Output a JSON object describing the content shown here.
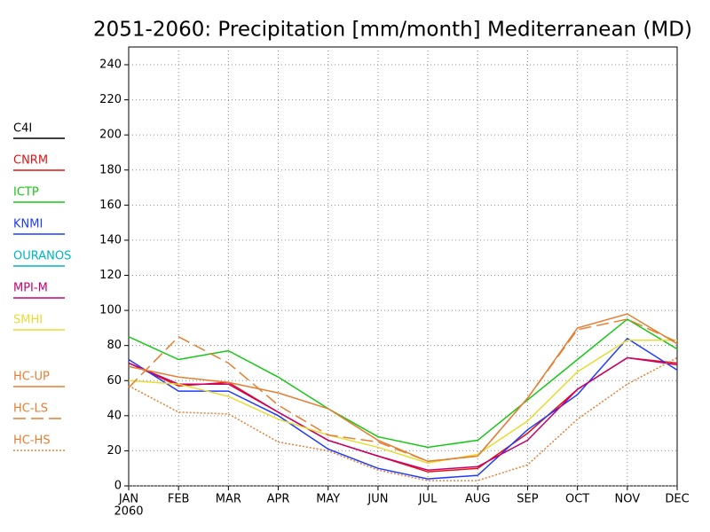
{
  "chart_data": {
    "type": "line",
    "title": "2051-2060: Precipitation [mm/month] Mediterranean (MD)",
    "categories": [
      "JAN",
      "FEB",
      "MAR",
      "APR",
      "MAY",
      "JUN",
      "JUL",
      "AUG",
      "SEP",
      "OCT",
      "NOV",
      "DEC"
    ],
    "year_label": "2060",
    "ylim": [
      0,
      240
    ],
    "yticks": [
      0,
      20,
      40,
      60,
      80,
      100,
      120,
      140,
      160,
      180,
      200,
      220,
      240
    ],
    "grid": true,
    "series": [
      {
        "name": "C4I",
        "color": "#000000",
        "dash": "solid",
        "values": [
          null,
          null,
          null,
          null,
          null,
          null,
          null,
          null,
          null,
          null,
          null,
          null
        ]
      },
      {
        "name": "CNRM",
        "color": "#e01414",
        "dash": "solid",
        "values": [
          70,
          57,
          59,
          42,
          26,
          17,
          8,
          10,
          30,
          55,
          73,
          70
        ]
      },
      {
        "name": "ICTP",
        "color": "#14c814",
        "dash": "solid",
        "values": [
          85,
          72,
          77,
          62,
          44,
          28,
          22,
          26,
          49,
          72,
          95,
          78
        ]
      },
      {
        "name": "KNMI",
        "color": "#1e3cff",
        "dash": "solid",
        "values": [
          72,
          54,
          54,
          40,
          21,
          10,
          4,
          6,
          32,
          52,
          84,
          66
        ]
      },
      {
        "name": "OURANOS",
        "color": "#00b4c8",
        "dash": "solid",
        "values": [
          null,
          null,
          null,
          null,
          null,
          null,
          null,
          null,
          null,
          null,
          null,
          null
        ]
      },
      {
        "name": "MPI-M",
        "color": "#c8006e",
        "dash": "solid",
        "values": [
          70,
          58,
          58,
          42,
          26,
          17,
          9,
          11,
          26,
          55,
          73,
          69
        ]
      },
      {
        "name": "SMHI",
        "color": "#e6dc32",
        "dash": "solid",
        "values": [
          60,
          58,
          51,
          38,
          29,
          22,
          13,
          18,
          37,
          65,
          83,
          83
        ]
      },
      {
        "name": "HC-UP",
        "color": "#e67e32",
        "dash": "solid",
        "values": [
          68,
          62,
          59,
          53,
          44,
          26,
          14,
          17,
          50,
          90,
          98,
          81
        ]
      },
      {
        "name": "HC-LS",
        "color": "#e67e32",
        "dash": "dashed",
        "values": [
          56,
          85,
          70,
          46,
          29,
          25,
          14,
          17,
          50,
          89,
          95,
          82
        ]
      },
      {
        "name": "HC-HS",
        "color": "#e67e32",
        "dash": "dotted",
        "values": [
          57,
          42,
          41,
          25,
          20,
          9,
          3,
          3,
          12,
          38,
          58,
          73
        ]
      }
    ]
  }
}
